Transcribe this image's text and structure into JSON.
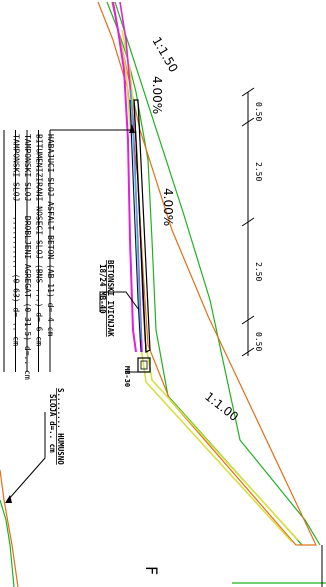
{
  "slope_annotations": {
    "top_ratio": "1:1.50",
    "top_percent": "4.00%",
    "mid_percent": "4.00%",
    "lower_ratio": "1:1.00"
  },
  "layer_legend": [
    "HABAJUCI SLOJ ASFALT BETON (AB 11)      d= 4 cm",
    "BITUMENIZIRANI NOSECI SLOJ (BNS ...)      d= 6 cm",
    "TAMPONSKI SLOJ - DROBLJENI AGREGAT (0-31.5) d=.. cm",
    "TAMPONSKI SLOJ - ...........  (0-63)   d= .. cm"
  ],
  "curb_label": [
    "BETONSKI IVICNJAK",
    "18/24 MB-40"
  ],
  "curb_code": "MB-30",
  "humus_label": [
    "S........ HUMUSNO",
    "SLOJA d=.. cm"
  ],
  "dimension_labels": [
    "0.50",
    "2.50",
    "2.50",
    "0.50"
  ],
  "edge_letter": "F",
  "line_colors": {
    "green": "#22b022",
    "orange": "#e0701a",
    "magenta": "#e020e0",
    "yellow": "#d8e040",
    "cyan": "#20c8e0",
    "navy": "#000080",
    "black": "#000000"
  }
}
